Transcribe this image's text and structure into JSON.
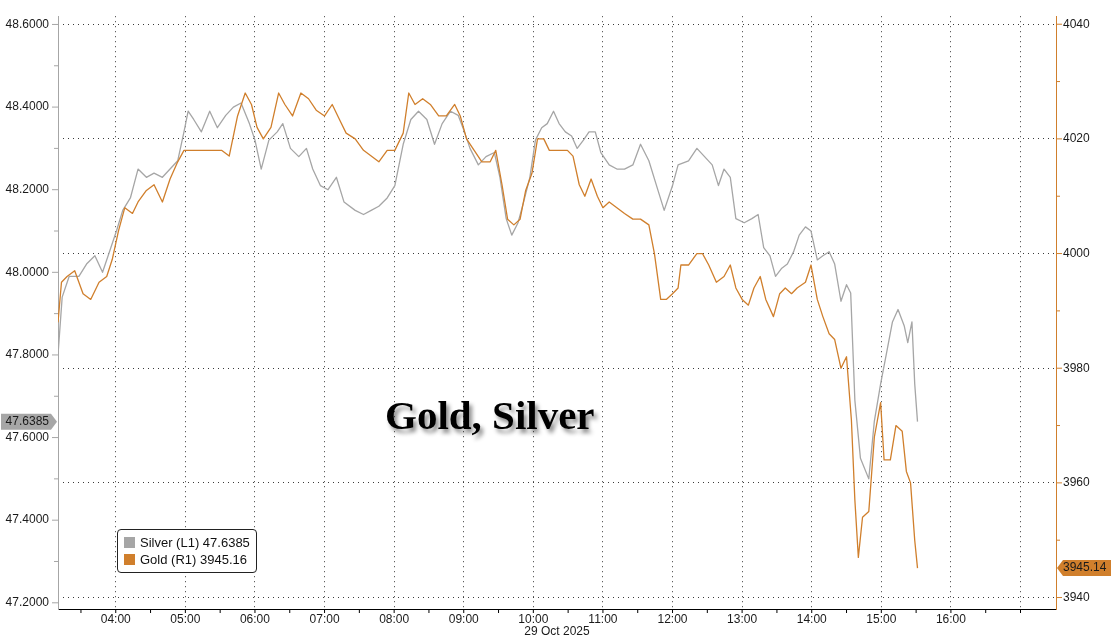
{
  "chart_data": {
    "type": "line",
    "title": "Gold, Silver",
    "xlabel": "29 Oct 2025",
    "xlim": [
      3.17,
      17.51
    ],
    "xticks": [
      {
        "value": 3.5,
        "label": null
      },
      {
        "value": 4,
        "label": "04:00"
      },
      {
        "value": 4.5,
        "label": null
      },
      {
        "value": 5,
        "label": "05:00"
      },
      {
        "value": 5.5,
        "label": null
      },
      {
        "value": 6,
        "label": "06:00"
      },
      {
        "value": 6.5,
        "label": null
      },
      {
        "value": 7,
        "label": "07:00"
      },
      {
        "value": 7.5,
        "label": null
      },
      {
        "value": 8,
        "label": "08:00"
      },
      {
        "value": 8.5,
        "label": null
      },
      {
        "value": 9,
        "label": "09:00"
      },
      {
        "value": 9.5,
        "label": null
      },
      {
        "value": 10,
        "label": "10:00"
      },
      {
        "value": 10.5,
        "label": null
      },
      {
        "value": 11,
        "label": "11:00"
      },
      {
        "value": 11.5,
        "label": null
      },
      {
        "value": 12,
        "label": "12:00"
      },
      {
        "value": 12.5,
        "label": null
      },
      {
        "value": 13,
        "label": "13:00"
      },
      {
        "value": 13.5,
        "label": null
      },
      {
        "value": 14,
        "label": "14:00"
      },
      {
        "value": 14.5,
        "label": null
      },
      {
        "value": 15,
        "label": "15:00"
      },
      {
        "value": 15.5,
        "label": null
      },
      {
        "value": 16,
        "label": "16:00"
      },
      {
        "value": 16.5,
        "label": null
      },
      {
        "value": 17,
        "label": null
      }
    ],
    "ylim": [
      47.185,
      48.62
    ],
    "yticks": [
      {
        "value": 47.2,
        "label": "47.2000"
      },
      {
        "value": 47.3,
        "label": null
      },
      {
        "value": 47.4,
        "label": "47.4000"
      },
      {
        "value": 47.5,
        "label": null
      },
      {
        "value": 47.6,
        "label": "47.6000"
      },
      {
        "value": 47.6385,
        "label": "47.6385"
      },
      {
        "value": 47.7,
        "label": null
      },
      {
        "value": 47.8,
        "label": "47.8000"
      },
      {
        "value": 47.9,
        "label": null
      },
      {
        "value": 48,
        "label": "48.0000"
      },
      {
        "value": 48.1,
        "label": null
      },
      {
        "value": 48.2,
        "label": "48.2000"
      },
      {
        "value": 48.3,
        "label": null
      },
      {
        "value": 48.4,
        "label": "48.4000"
      },
      {
        "value": 48.5,
        "label": null
      },
      {
        "value": 48.6,
        "label": "48.6000"
      }
    ],
    "y2lim": [
      3938,
      4041.4
    ],
    "y2ticks": [
      3940,
      {
        "value": 3945.14,
        "label": "3945.14"
      },
      {
        "value": 3950,
        "label": null
      },
      3960,
      {
        "value": 3970,
        "label": null
      },
      3980,
      {
        "value": 3990,
        "label": null
      },
      4000,
      {
        "value": 4010,
        "label": null
      },
      4020,
      {
        "value": 4030,
        "label": null
      },
      4040
    ],
    "grid": true,
    "legend": "bottom left",
    "series": [
      {
        "name": "Silver (L1) 47.6385",
        "color": "#a6a6a6",
        "x": [
          3.17,
          3.23,
          3.33,
          3.47,
          3.58,
          3.7,
          3.81,
          3.93,
          4.01,
          4.1,
          4.21,
          4.32,
          4.44,
          4.55,
          4.67,
          4.78,
          4.89,
          4.98,
          5.04,
          5.12,
          5.23,
          5.35,
          5.46,
          5.58,
          5.69,
          5.8,
          5.92,
          6.0,
          6.09,
          6.2,
          6.32,
          6.4,
          6.51,
          6.63,
          6.74,
          6.83,
          6.94,
          7.05,
          7.17,
          7.28,
          7.44,
          7.56,
          7.67,
          7.78,
          7.9,
          8.01,
          8.13,
          8.24,
          8.35,
          8.47,
          8.58,
          8.69,
          8.81,
          8.92,
          9.01,
          9.09,
          9.21,
          9.32,
          9.44,
          9.52,
          9.61,
          9.69,
          9.78,
          9.86,
          9.95,
          10.03,
          10.12,
          10.2,
          10.29,
          10.37,
          10.46,
          10.55,
          10.63,
          10.72,
          10.8,
          10.89,
          10.97,
          11.09,
          11.2,
          11.31,
          11.43,
          11.54,
          11.66,
          11.77,
          11.88,
          12.0,
          12.08,
          12.23,
          12.35,
          12.46,
          12.57,
          12.66,
          12.74,
          12.83,
          12.91,
          13.03,
          13.14,
          13.23,
          13.31,
          13.4,
          13.48,
          13.57,
          13.65,
          13.74,
          13.82,
          13.91,
          13.99,
          14.08,
          14.16,
          14.25,
          14.33,
          14.42,
          14.5,
          14.56,
          14.62,
          14.7,
          14.82,
          14.9,
          14.99,
          15.07,
          15.16,
          15.24,
          15.33,
          15.38,
          15.44,
          15.48,
          15.52
        ],
        "values": [
          47.8,
          47.94,
          47.99,
          47.99,
          48.02,
          48.04,
          48.0,
          48.06,
          48.1,
          48.15,
          48.18,
          48.25,
          48.23,
          48.24,
          48.23,
          48.25,
          48.27,
          48.34,
          48.39,
          48.37,
          48.34,
          48.39,
          48.35,
          48.38,
          48.4,
          48.41,
          48.36,
          48.32,
          48.25,
          48.32,
          48.34,
          48.36,
          48.3,
          48.28,
          48.3,
          48.25,
          48.21,
          48.2,
          48.23,
          48.17,
          48.15,
          48.14,
          48.15,
          48.16,
          48.18,
          48.21,
          48.31,
          48.37,
          48.39,
          48.37,
          48.31,
          48.36,
          48.39,
          48.38,
          48.34,
          48.3,
          48.26,
          48.28,
          48.29,
          48.23,
          48.13,
          48.09,
          48.12,
          48.17,
          48.23,
          48.32,
          48.35,
          48.36,
          48.39,
          48.36,
          48.34,
          48.33,
          48.3,
          48.32,
          48.34,
          48.34,
          48.29,
          48.26,
          48.25,
          48.25,
          48.26,
          48.31,
          48.27,
          48.21,
          48.15,
          48.21,
          48.26,
          48.27,
          48.3,
          48.28,
          48.26,
          48.21,
          48.25,
          48.23,
          48.13,
          48.12,
          48.13,
          48.14,
          48.06,
          48.04,
          47.99,
          48.01,
          48.02,
          48.05,
          48.09,
          48.11,
          48.1,
          48.03,
          48.04,
          48.05,
          48.02,
          47.93,
          47.97,
          47.95,
          47.69,
          47.55,
          47.5,
          47.64,
          47.73,
          47.8,
          47.88,
          47.91,
          47.87,
          47.83,
          47.88,
          47.73,
          47.6385
        ]
      },
      {
        "name": "Gold (R1) 3945.16",
        "color": "#d07f2c",
        "axis": "y2",
        "x": [
          3.17,
          3.22,
          3.3,
          3.41,
          3.53,
          3.64,
          3.76,
          3.87,
          3.95,
          4.04,
          4.13,
          4.24,
          4.32,
          4.44,
          4.55,
          4.67,
          4.78,
          4.89,
          4.98,
          5.06,
          5.18,
          5.29,
          5.41,
          5.52,
          5.63,
          5.75,
          5.86,
          5.95,
          6.03,
          6.12,
          6.23,
          6.34,
          6.43,
          6.54,
          6.66,
          6.77,
          6.88,
          7.0,
          7.11,
          7.23,
          7.31,
          7.44,
          7.56,
          7.67,
          7.78,
          7.9,
          8.01,
          8.13,
          8.21,
          8.3,
          8.41,
          8.52,
          8.64,
          8.75,
          8.87,
          8.95,
          9.04,
          9.15,
          9.26,
          9.38,
          9.46,
          9.55,
          9.63,
          9.72,
          9.81,
          9.89,
          9.98,
          10.06,
          10.15,
          10.23,
          10.32,
          10.4,
          10.49,
          10.57,
          10.66,
          10.74,
          10.83,
          10.92,
          11.0,
          11.09,
          11.2,
          11.31,
          11.43,
          11.54,
          11.66,
          11.74,
          11.83,
          11.91,
          12.0,
          12.08,
          12.12,
          12.23,
          12.35,
          12.43,
          12.52,
          12.63,
          12.74,
          12.83,
          12.91,
          13.0,
          13.09,
          13.17,
          13.26,
          13.34,
          13.45,
          13.54,
          13.62,
          13.71,
          13.79,
          13.91,
          13.99,
          14.08,
          14.16,
          14.25,
          14.33,
          14.42,
          14.5,
          14.57,
          14.62,
          14.67,
          14.73,
          14.82,
          14.9,
          14.99,
          15.04,
          15.13,
          15.21,
          15.3,
          15.36,
          15.42,
          15.48,
          15.52
        ],
        "values": [
          3988,
          3995,
          3996,
          3997,
          3993,
          3992,
          3995,
          3996,
          3999,
          4004,
          4008,
          4007,
          4009,
          4011,
          4012,
          4009,
          4013,
          4016,
          4018,
          4018,
          4018,
          4018,
          4018,
          4018,
          4017,
          4024,
          4028,
          4026,
          4022,
          4020,
          4022,
          4028,
          4026,
          4024,
          4028,
          4027,
          4025,
          4024,
          4026,
          4023,
          4021,
          4020,
          4018,
          4017,
          4016,
          4018,
          4018,
          4021,
          4028,
          4026,
          4027,
          4026,
          4024,
          4024,
          4026,
          4024,
          4020,
          4018,
          4016,
          4016,
          4018,
          4012,
          4006,
          4005,
          4006,
          4011,
          4014,
          4020,
          4020,
          4018,
          4018,
          4018,
          4018,
          4017,
          4012,
          4010,
          4013,
          4010,
          4008,
          4009,
          4008,
          4007,
          4006,
          4006,
          4005,
          4000,
          3992,
          3992,
          3993,
          3994,
          3998,
          3998,
          4000,
          4000,
          3998,
          3995,
          3996,
          3998,
          3994,
          3992,
          3991,
          3994,
          3996,
          3992,
          3989,
          3993,
          3994,
          3993,
          3994,
          3995,
          3998,
          3992,
          3989,
          3986,
          3985,
          3980,
          3982,
          3971,
          3957,
          3947,
          3954,
          3955,
          3968,
          3974,
          3964,
          3964,
          3970,
          3969,
          3962,
          3960,
          3950,
          3945.14
        ]
      }
    ]
  }
}
